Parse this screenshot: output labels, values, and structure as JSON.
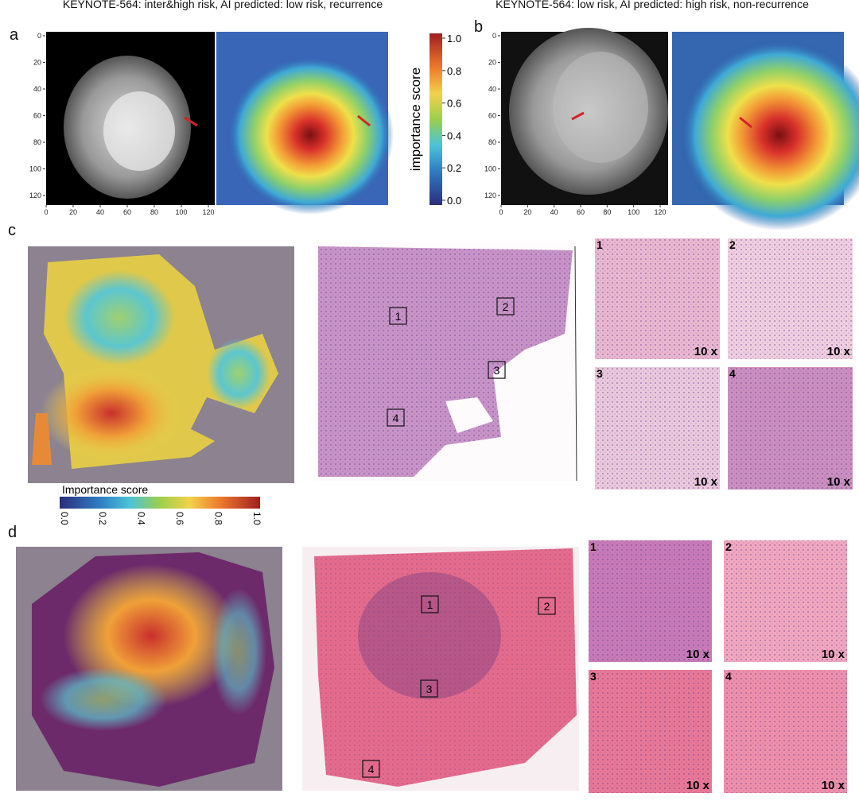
{
  "titles": [
    "KEYNOTE-564: inter&high risk, AI predicted: low risk, recurrence",
    "KEYNOTE-564: low risk, AI predicted: high risk, non-recurrence"
  ],
  "panel_labels": [
    "a",
    "b",
    "c",
    "d"
  ],
  "ct_axis": {
    "yticks": [
      "0",
      "20",
      "40",
      "60",
      "80",
      "100",
      "120"
    ],
    "xticks": [
      "0",
      "20",
      "40",
      "60",
      "80",
      "100",
      "120"
    ]
  },
  "colorbar_ab": {
    "label": "importance score",
    "ticks": [
      "1.0",
      "0.8",
      "0.6",
      "0.4",
      "0.2",
      "0.0"
    ]
  },
  "colorbar_c": {
    "label": "Importance score",
    "ticks": [
      "0.0",
      "0.2",
      "0.4",
      "0.6",
      "0.8",
      "1.0"
    ]
  },
  "regions": [
    "1",
    "2",
    "3",
    "4"
  ],
  "magnification": "10 x"
}
